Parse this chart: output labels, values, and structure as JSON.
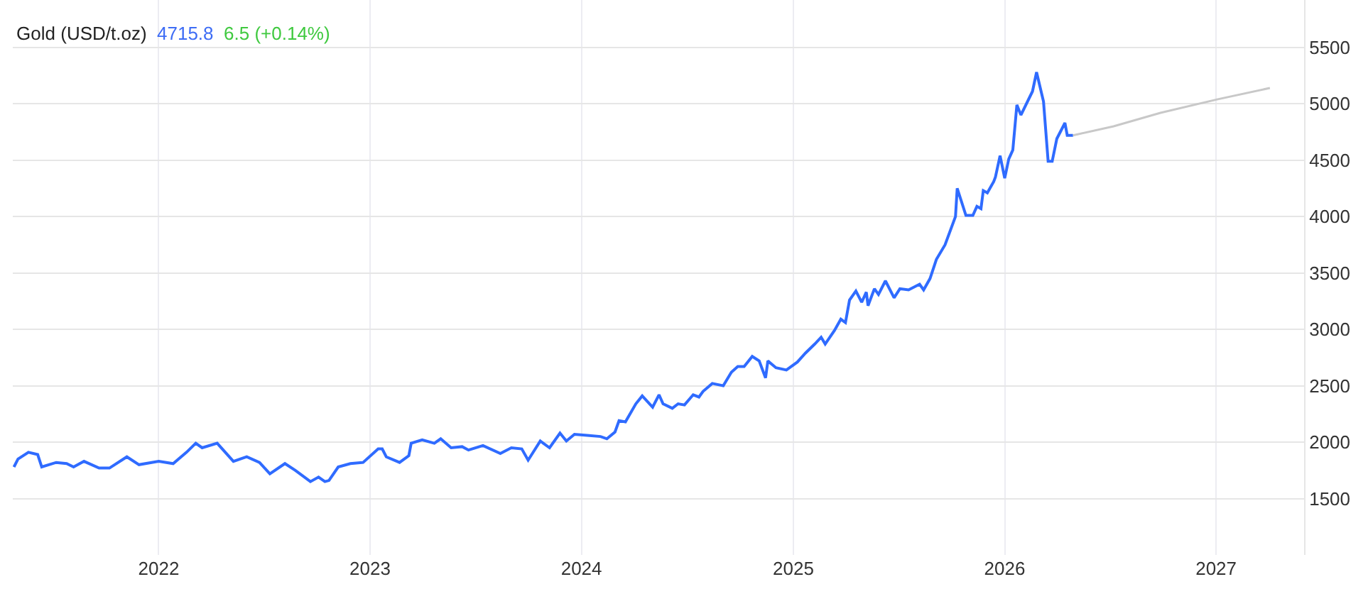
{
  "chart_data": {
    "type": "line",
    "title": "Gold (USD/t.oz)",
    "annotations": [
      "4715.8",
      "6.5 (+0.14%)"
    ],
    "xlim": [
      "2021-04-24",
      "2027-06-02"
    ],
    "xticks": [
      "2022",
      "2023",
      "2024",
      "2025",
      "2026",
      "2027"
    ],
    "ylim": [
      1000,
      5920
    ],
    "yticks": [
      1500,
      2000,
      2500,
      3000,
      3500,
      4000,
      4500,
      5000,
      5500
    ],
    "grid": true,
    "marker": "none",
    "line_style": "solid",
    "series": [
      {
        "color": "#2f6bff",
        "x": [
          "2021-04-26",
          "2021-05-03",
          "2021-05-21",
          "2021-06-06",
          "2021-06-13",
          "2021-07-08",
          "2021-07-26",
          "2021-08-07",
          "2021-08-25",
          "2021-09-20",
          "2021-10-08",
          "2021-11-07",
          "2021-11-28",
          "2022-01-01",
          "2022-01-26",
          "2022-02-18",
          "2022-03-06",
          "2022-03-17",
          "2022-04-12",
          "2022-05-10",
          "2022-06-02",
          "2022-06-24",
          "2022-07-12",
          "2022-08-07",
          "2022-08-25",
          "2022-09-20",
          "2022-10-04",
          "2022-10-15",
          "2022-10-22",
          "2022-11-07",
          "2022-11-28",
          "2022-12-20",
          "2023-01-15",
          "2023-01-22",
          "2023-01-29",
          "2023-02-21",
          "2023-03-09",
          "2023-03-13",
          "2023-04-01",
          "2023-04-22",
          "2023-05-03",
          "2023-05-21",
          "2023-06-09",
          "2023-06-20",
          "2023-07-15",
          "2023-08-14",
          "2023-09-02",
          "2023-09-20",
          "2023-10-01",
          "2023-10-22",
          "2023-11-07",
          "2023-11-25",
          "2023-12-06",
          "2023-12-20",
          "2024-01-11",
          "2024-02-03",
          "2024-02-14",
          "2024-02-28",
          "2024-03-06",
          "2024-03-17",
          "2024-04-04",
          "2024-04-15",
          "2024-05-03",
          "2024-05-14",
          "2024-05-21",
          "2024-06-06",
          "2024-06-16",
          "2024-06-27",
          "2024-07-12",
          "2024-07-22",
          "2024-07-29",
          "2024-08-14",
          "2024-09-02",
          "2024-09-16",
          "2024-09-27",
          "2024-10-08",
          "2024-10-22",
          "2024-11-03",
          "2024-11-14",
          "2024-11-18",
          "2024-12-02",
          "2024-12-20",
          "2025-01-08",
          "2025-01-22",
          "2025-02-07",
          "2025-02-18",
          "2025-02-25",
          "2025-03-13",
          "2025-03-24",
          "2025-04-01",
          "2025-04-08",
          "2025-04-19",
          "2025-04-29",
          "2025-05-07",
          "2025-05-10",
          "2025-05-21",
          "2025-05-28",
          "2025-06-09",
          "2025-06-24",
          "2025-07-04",
          "2025-07-19",
          "2025-08-07",
          "2025-08-14",
          "2025-08-25",
          "2025-09-05",
          "2025-09-20",
          "2025-10-08",
          "2025-10-11",
          "2025-10-26",
          "2025-11-07",
          "2025-11-14",
          "2025-11-21",
          "2025-11-25",
          "2025-12-02",
          "2025-12-13",
          "2025-12-16",
          "2025-12-24",
          "2026-01-01",
          "2026-01-08",
          "2026-01-15",
          "2026-01-22",
          "2026-01-29",
          "2026-02-18",
          "2026-02-25",
          "2026-03-09",
          "2026-03-17",
          "2026-03-24",
          "2026-04-01",
          "2026-04-15",
          "2026-04-19",
          "2026-04-29"
        ],
        "values": [
          1780,
          1850,
          1910,
          1890,
          1780,
          1820,
          1810,
          1780,
          1830,
          1770,
          1770,
          1870,
          1800,
          1830,
          1810,
          1910,
          1990,
          1950,
          1990,
          1830,
          1870,
          1820,
          1720,
          1810,
          1750,
          1650,
          1690,
          1650,
          1660,
          1780,
          1810,
          1820,
          1940,
          1940,
          1870,
          1820,
          1880,
          1990,
          2020,
          1990,
          2030,
          1950,
          1960,
          1930,
          1970,
          1900,
          1950,
          1940,
          1840,
          2010,
          1950,
          2080,
          2010,
          2070,
          2060,
          2050,
          2030,
          2090,
          2190,
          2180,
          2340,
          2410,
          2310,
          2420,
          2340,
          2300,
          2340,
          2330,
          2420,
          2400,
          2450,
          2520,
          2500,
          2620,
          2670,
          2670,
          2760,
          2720,
          2570,
          2720,
          2660,
          2640,
          2710,
          2790,
          2870,
          2930,
          2870,
          2990,
          3090,
          3060,
          3260,
          3340,
          3240,
          3330,
          3210,
          3360,
          3310,
          3430,
          3280,
          3360,
          3350,
          3400,
          3350,
          3450,
          3620,
          3750,
          4000,
          4250,
          4010,
          4010,
          4090,
          4070,
          4230,
          4210,
          4310,
          4350,
          4540,
          4340,
          4510,
          4590,
          4990,
          4900,
          5110,
          5280,
          5020,
          4490,
          4490,
          4690,
          4830,
          4720,
          4720
        ]
      },
      {
        "color": "#c8c8c8",
        "x": [
          "2026-04-29",
          "2026-07-08",
          "2026-09-27",
          "2027-01-04",
          "2027-04-04"
        ],
        "values": [
          4720,
          4800,
          4920,
          5040,
          5140
        ]
      }
    ]
  }
}
